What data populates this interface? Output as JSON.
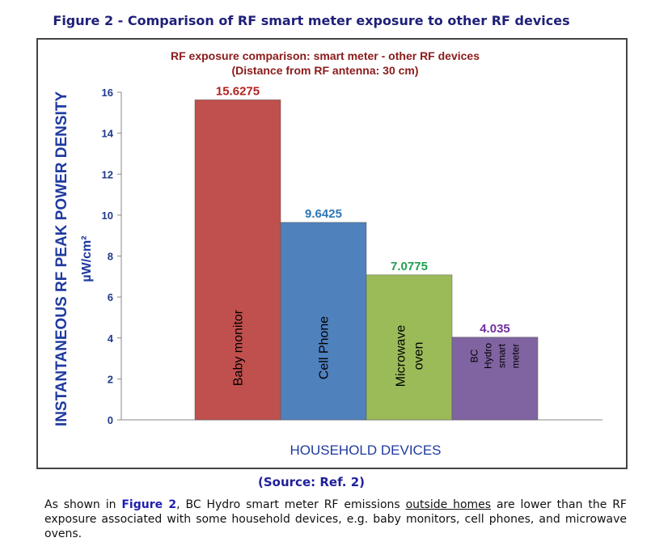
{
  "figure_title": "Figure 2 - Comparison of RF smart meter exposure to other RF devices",
  "source": "(Source: Ref. 2)",
  "paragraph": {
    "part1": "As shown in ",
    "link": "Figure 2",
    "part2": ", BC Hydro smart meter RF emissions ",
    "underlined": "outside homes",
    "part3": " are lower than the RF exposure associated with some household devices, e.g. baby monitors, cell phones, and microwave ovens."
  },
  "chart_data": {
    "type": "bar",
    "title": "RF exposure comparison: smart meter - other RF devices",
    "subtitle": "(Distance from RF antenna: 30 cm)",
    "ylabel": "INSTANTANEOUS RF PEAK POWER DENSITY",
    "yunit": "µW/cm²",
    "xlabel": "HOUSEHOLD DEVICES",
    "ylim": [
      0,
      16
    ],
    "yticks": [
      0,
      2,
      4,
      6,
      8,
      10,
      12,
      14,
      16
    ],
    "grid": false,
    "categories": [
      [
        "Baby monitor"
      ],
      [
        "Cell Phone"
      ],
      [
        "Microwave",
        "oven"
      ],
      [
        "BC",
        "Hydro",
        "smart",
        "meter"
      ]
    ],
    "values": [
      15.6275,
      9.6425,
      7.0775,
      4.035
    ],
    "value_labels": [
      "15.6275",
      "9.6425",
      "7.0775",
      "4.035"
    ],
    "colors": [
      "#c0504d",
      "#4f81bd",
      "#9bbb59",
      "#8064a2"
    ],
    "label_colors": [
      "#b22222",
      "#2e75b6",
      "#22a050",
      "#7030a0"
    ]
  }
}
